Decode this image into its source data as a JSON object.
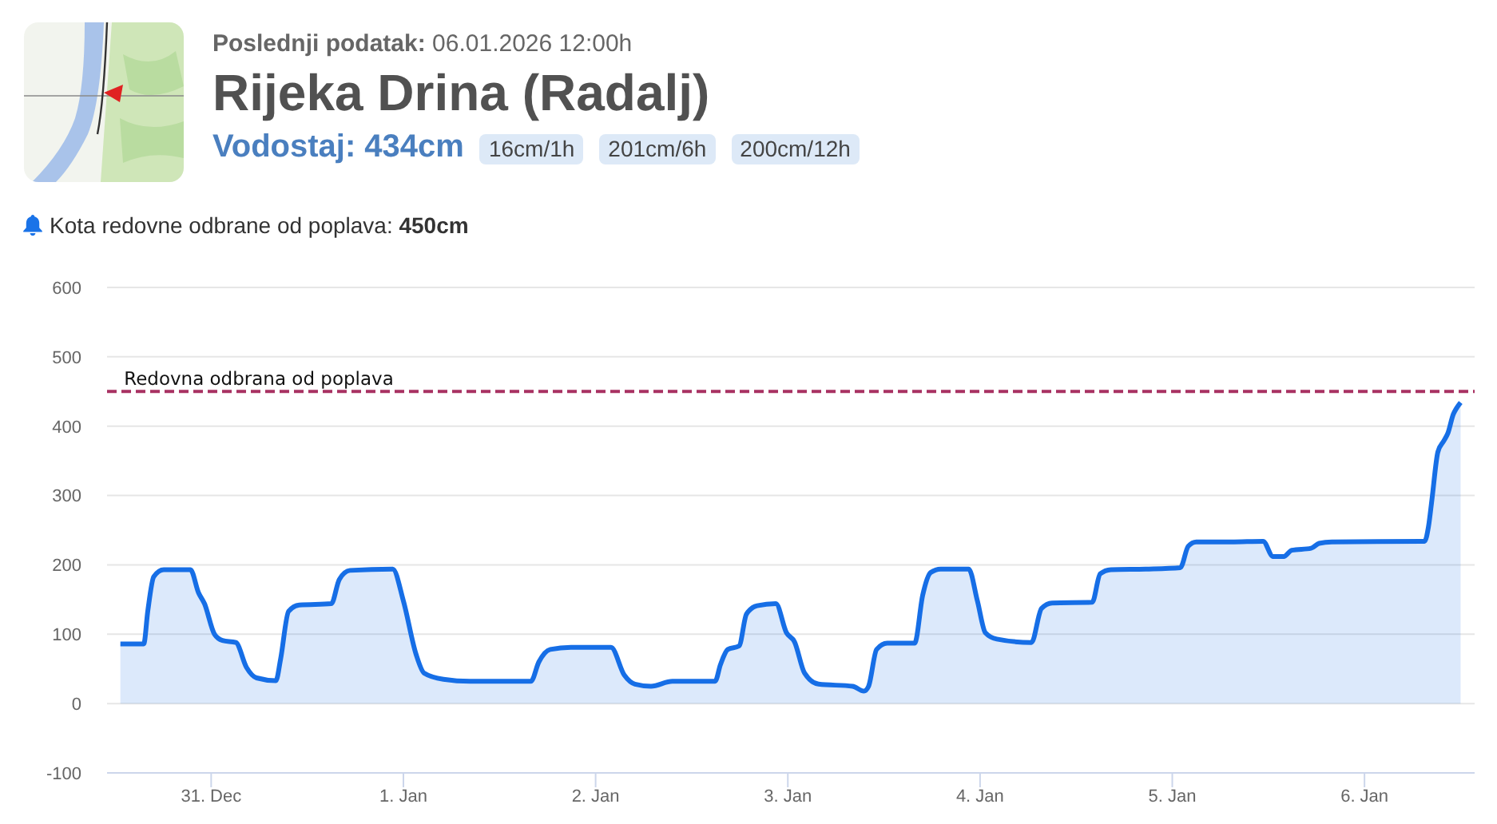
{
  "chart_data": {
    "type": "area",
    "title": "Rijeka Drina (Radalj)",
    "subtitle": "Poslednji podatak: 06.01.2026 12:00h",
    "annotations": [
      "Vodostaj: 434cm",
      "16cm/1h",
      "201cm/6h",
      "200cm/12h",
      "Kota redovne odbrane od poplava: 450cm"
    ],
    "x": [
      "2025-12-30T12:40",
      "2025-12-30T15:35",
      "2025-12-30T16:05",
      "2025-12-30T16:50",
      "2025-12-30T18:05",
      "2025-12-30T21:25",
      "2025-12-30T22:25",
      "2025-12-30T23:10",
      "2025-12-31T00:25",
      "2025-12-31T01:25",
      "2025-12-31T03:05",
      "2025-12-31T04:25",
      "2025-12-31T05:40",
      "2025-12-31T08:05",
      "2025-12-31T08:40",
      "2025-12-31T09:40",
      "2025-12-31T11:00",
      "2025-12-31T15:00",
      "2025-12-31T16:00",
      "2025-12-31T17:20",
      "2025-12-31T22:40",
      "2026-01-01T00:00",
      "2026-01-01T01:35",
      "2026-01-01T02:35",
      "2026-01-01T05:00",
      "2026-01-01T08:20",
      "2026-01-01T15:55",
      "2026-01-01T16:55",
      "2026-01-01T18:20",
      "2026-01-01T20:55",
      "2026-01-02T01:55",
      "2026-01-02T03:35",
      "2026-01-02T04:55",
      "2026-01-02T06:55",
      "2026-01-02T09:35",
      "2026-01-02T14:55",
      "2026-01-02T15:35",
      "2026-01-02T16:30",
      "2026-01-02T17:55",
      "2026-01-02T18:50",
      "2026-01-02T20:10",
      "2026-01-02T22:30",
      "2026-01-02T23:50",
      "2026-01-03T00:50",
      "2026-01-03T02:05",
      "2026-01-03T03:50",
      "2026-01-03T08:05",
      "2026-01-03T09:30",
      "2026-01-03T10:05",
      "2026-01-03T11:05",
      "2026-01-03T12:25",
      "2026-01-03T15:50",
      "2026-01-03T16:50",
      "2026-01-03T17:50",
      "2026-01-03T19:05",
      "2026-01-03T22:35",
      "2026-01-03T23:40",
      "2026-01-04T00:40",
      "2026-01-04T02:05",
      "2026-01-04T06:25",
      "2026-01-04T07:40",
      "2026-01-04T09:00",
      "2026-01-04T14:00",
      "2026-01-04T15:00",
      "2026-01-04T16:20",
      "2026-01-04T20:40",
      "2026-01-05T01:00",
      "2026-01-05T02:00",
      "2026-01-05T03:00",
      "2026-01-05T07:20",
      "2026-01-05T11:20",
      "2026-01-05T12:35",
      "2026-01-05T13:55",
      "2026-01-05T14:55",
      "2026-01-05T17:20",
      "2026-01-05T18:20",
      "2026-01-05T19:55",
      "2026-01-06T07:30",
      "2026-01-06T08:00",
      "2026-01-06T08:25",
      "2026-01-06T09:10",
      "2026-01-06T09:55",
      "2026-01-06T10:25",
      "2026-01-06T11:05",
      "2026-01-06T11:30",
      "2026-01-06T12:00"
    ],
    "values": [
      86,
      86,
      133,
      183,
      193,
      193,
      160,
      144,
      100,
      91,
      88,
      52,
      37,
      33,
      64,
      133,
      142,
      144,
      179,
      192,
      194,
      148,
      71,
      44,
      35,
      32,
      32,
      60,
      78,
      81,
      81,
      41,
      28,
      25,
      32,
      32,
      56,
      78,
      83,
      129,
      141,
      144,
      102,
      89,
      44,
      28,
      25,
      18,
      25,
      78,
      87,
      87,
      156,
      189,
      194,
      194,
      148,
      102,
      93,
      88,
      137,
      145,
      146,
      187,
      193,
      194,
      196,
      227,
      233,
      233,
      234,
      212,
      212,
      221,
      224,
      231,
      233,
      234,
      256,
      294,
      363,
      379,
      390,
      417,
      426,
      434
    ],
    "color": "#166ee6",
    "marker": "none",
    "grid": "y",
    "xlim": [
      "2025-12-30T11:00",
      "2026-01-06T13:45"
    ],
    "xticks": [
      {
        "value": "2025-12-31",
        "label": "31. Dec"
      },
      {
        "value": "2026-01-01",
        "label": "1. Jan"
      },
      {
        "value": "2026-01-02",
        "label": "2. Jan"
      },
      {
        "value": "2026-01-03",
        "label": "3. Jan"
      },
      {
        "value": "2026-01-04",
        "label": "4. Jan"
      },
      {
        "value": "2026-01-05",
        "label": "5. Jan"
      },
      {
        "value": "2026-01-06",
        "label": "6. Jan"
      }
    ],
    "ylim": [
      -100,
      600
    ],
    "yticks": [
      -100,
      0,
      100,
      200,
      300,
      400,
      500,
      600
    ],
    "ref_lines": [
      {
        "axis": "y",
        "value": 450,
        "label": "Redovna odbrana od poplava",
        "color": "#a83262",
        "line_style": "dashed"
      }
    ]
  }
}
